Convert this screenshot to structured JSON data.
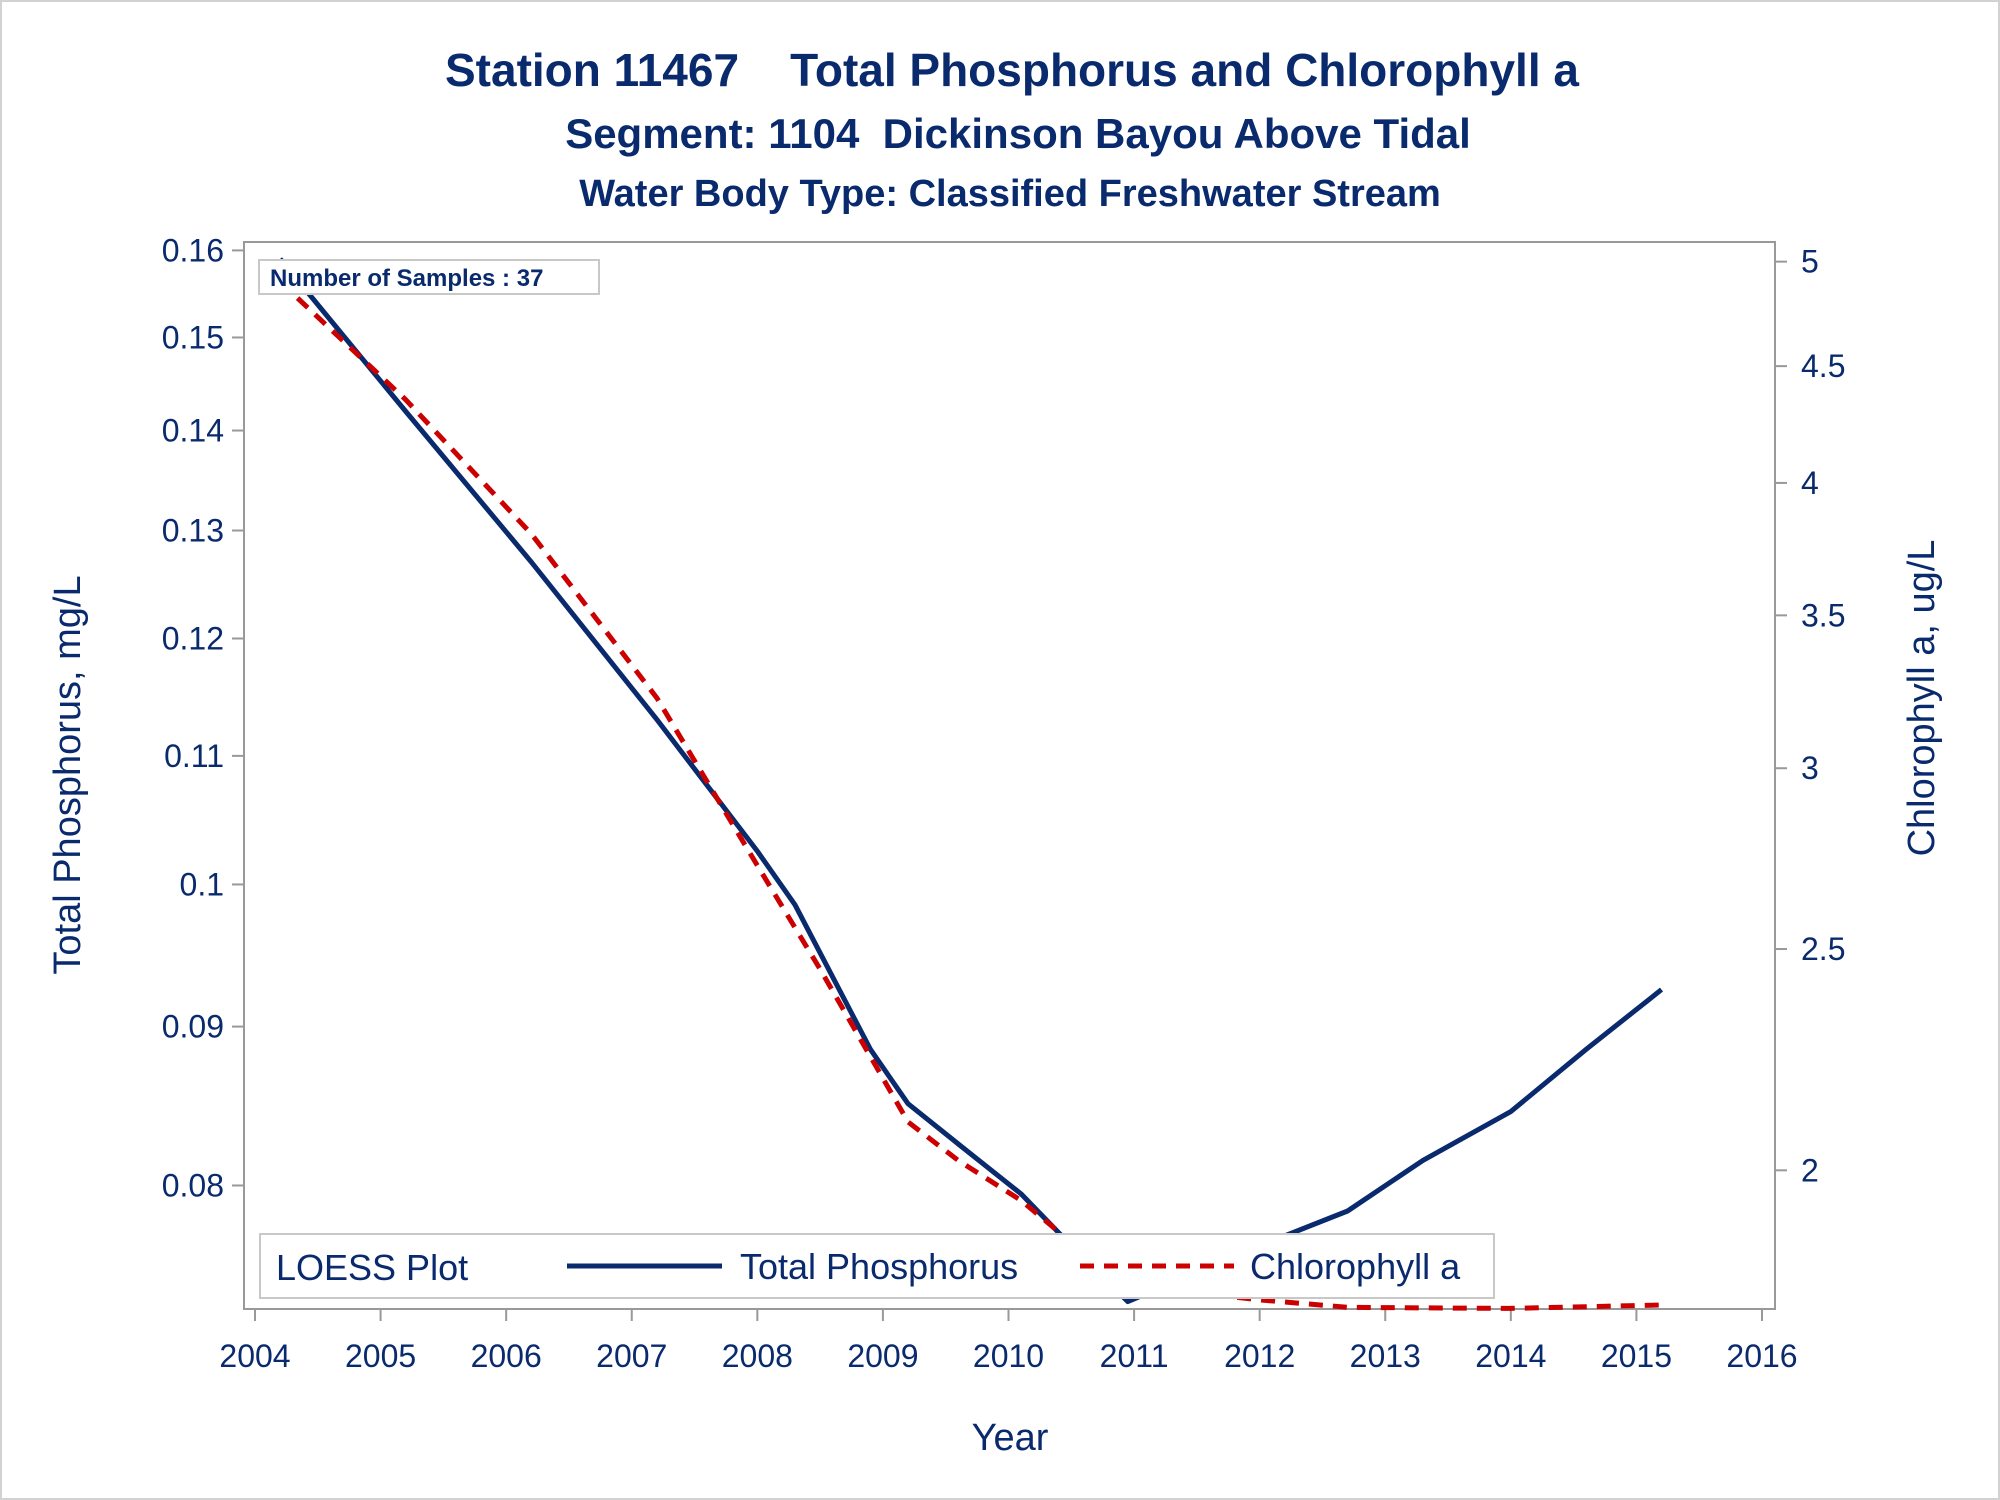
{
  "chart_data": {
    "type": "line",
    "title": "Station 11467    Total Phosphorus and Chlorophyll a",
    "subtitle": "Segment: 1104  Dickinson Bayou Above Tidal",
    "subtitle2": "Water Body Type: Classified Freshwater Stream",
    "xlabel": "Year",
    "ylabel": "Total Phosphorus, mg/L",
    "y2label": "Chlorophyll a, ug/L",
    "xlim": [
      2004,
      2016
    ],
    "ylim": [
      0.073,
      0.161
    ],
    "y2lim": [
      1.739,
      5.1
    ],
    "y_scale": "log",
    "y2_scale": "log",
    "x_ticks": [
      "2004",
      "2005",
      "2006",
      "2007",
      "2008",
      "2009",
      "2010",
      "2011",
      "2012",
      "2013",
      "2014",
      "2015",
      "2016"
    ],
    "y_ticks": [
      "0.08",
      "0.09",
      "0.1",
      "0.11",
      "0.12",
      "0.13",
      "0.14",
      "0.15",
      "0.16"
    ],
    "y2_ticks": [
      "2",
      "2.5",
      "3",
      "3.5",
      "4",
      "4.5",
      "5"
    ],
    "grid": false,
    "annotation": "Number of Samples : 37",
    "legend": {
      "title": "LOESS Plot",
      "placement": "bottom-inside",
      "entries": [
        "Total Phosphorus",
        "Chlorophyll a"
      ]
    },
    "series": [
      {
        "name": "Total Phosphorus",
        "axis": "left",
        "color": "#0a2a6e",
        "style": "solid",
        "x": [
          2004.2,
          2005.2,
          2006.2,
          2007.2,
          2008.0,
          2008.3,
          2008.9,
          2009.2,
          2009.6,
          2010.1,
          2010.5,
          2010.95,
          2011.4,
          2012.0,
          2012.7,
          2013.3,
          2014.0,
          2014.6,
          2015.2
        ],
        "values": [
          0.159,
          0.142,
          0.127,
          0.113,
          0.1025,
          0.0985,
          0.0885,
          0.085,
          0.0825,
          0.0795,
          0.0765,
          0.0734,
          0.0747,
          0.0765,
          0.0785,
          0.0815,
          0.0845,
          0.0885,
          0.0925
        ]
      },
      {
        "name": "Chlorophyll a",
        "axis": "right",
        "color": "#cc0000",
        "style": "dashed",
        "x": [
          2004.2,
          2005.2,
          2006.2,
          2007.2,
          2008.0,
          2008.5,
          2009.2,
          2009.6,
          2010.1,
          2010.5,
          2010.9,
          2011.4,
          2012.0,
          2012.7,
          2013.3,
          2014.0,
          2014.6,
          2015.2
        ],
        "values": [
          4.9,
          4.35,
          3.8,
          3.22,
          2.72,
          2.45,
          2.1,
          2.02,
          1.94,
          1.86,
          1.785,
          1.77,
          1.755,
          1.742,
          1.741,
          1.74,
          1.743,
          1.746
        ]
      }
    ]
  }
}
